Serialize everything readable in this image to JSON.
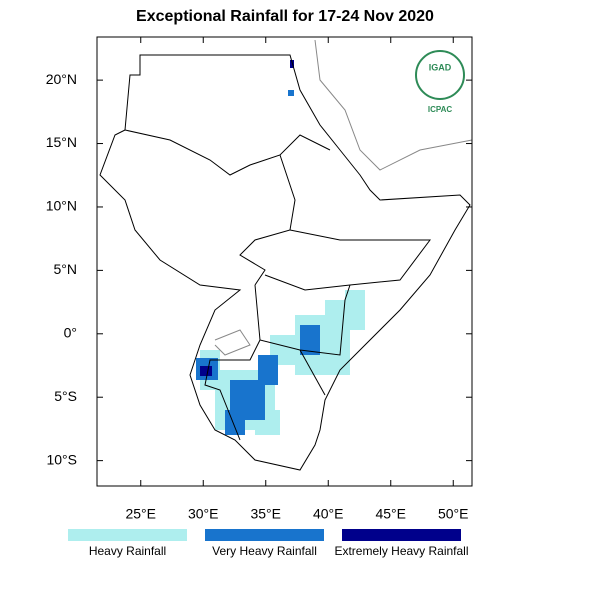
{
  "map": {
    "title": "Exceptional Rainfall for 17-24 Nov 2020",
    "xlim": [
      21.5,
      51.5
    ],
    "ylim": [
      -12,
      23.4
    ],
    "xticks": [
      {
        "value": 25,
        "label": "25°E"
      },
      {
        "value": 30,
        "label": "30°E"
      },
      {
        "value": 35,
        "label": "35°E"
      },
      {
        "value": 40,
        "label": "40°E"
      },
      {
        "value": 45,
        "label": "45°E"
      },
      {
        "value": 50,
        "label": "50°E"
      }
    ],
    "yticks": [
      {
        "value": 20,
        "label": "20°N"
      },
      {
        "value": 15,
        "label": "15°N"
      },
      {
        "value": 10,
        "label": "10°N"
      },
      {
        "value": 5,
        "label": "5°N"
      },
      {
        "value": 0,
        "label": "0°"
      },
      {
        "value": -5,
        "label": "5°S"
      },
      {
        "value": -10,
        "label": "10°S"
      }
    ],
    "legend": [
      {
        "label": "Heavy Rainfall",
        "color": "#aeeeee"
      },
      {
        "label": "Very Heavy Rainfall",
        "color": "#1874cd"
      },
      {
        "label": "Extremely Heavy Rainfall",
        "color": "#00008b"
      }
    ],
    "logo": {
      "top": "IGAD",
      "bottom": "ICPAC"
    }
  }
}
